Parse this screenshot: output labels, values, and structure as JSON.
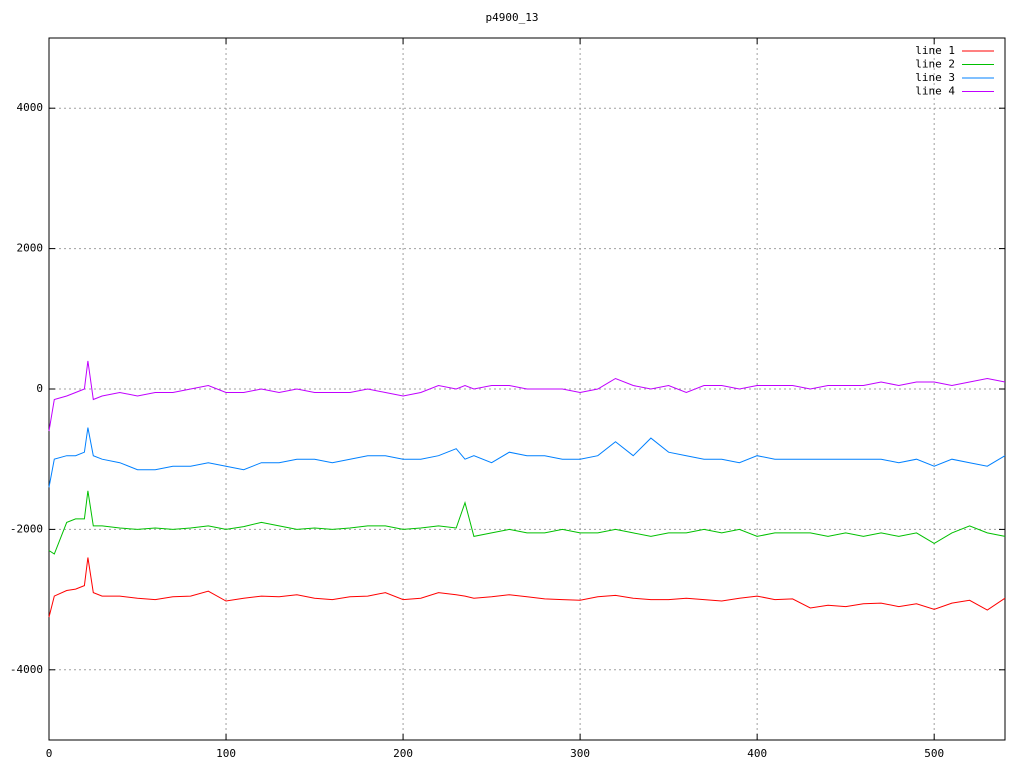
{
  "chart_data": {
    "type": "line",
    "title": "p4900_13",
    "x": [
      0,
      3,
      10,
      15,
      20,
      22,
      25,
      30,
      40,
      50,
      60,
      70,
      80,
      90,
      100,
      110,
      120,
      130,
      140,
      150,
      160,
      170,
      180,
      190,
      200,
      210,
      220,
      230,
      235,
      240,
      250,
      260,
      270,
      280,
      290,
      300,
      310,
      320,
      330,
      340,
      350,
      360,
      370,
      380,
      390,
      400,
      410,
      420,
      430,
      440,
      450,
      460,
      470,
      480,
      490,
      500,
      510,
      520,
      530,
      540
    ],
    "series": [
      {
        "name": "line 1",
        "color": "#ff0000",
        "values": [
          -3250,
          -2950,
          -2870,
          -2850,
          -2800,
          -2400,
          -2900,
          -2950,
          -2950,
          -2980,
          -3000,
          -2960,
          -2950,
          -2880,
          -3020,
          -2980,
          -2950,
          -2960,
          -2930,
          -2980,
          -3000,
          -2960,
          -2950,
          -2900,
          -3000,
          -2980,
          -2900,
          -2930,
          -2950,
          -2980,
          -2960,
          -2930,
          -2960,
          -2990,
          -3000,
          -3010,
          -2960,
          -2940,
          -2980,
          -3000,
          -3000,
          -2980,
          -3000,
          -3020,
          -2980,
          -2950,
          -3000,
          -2990,
          -3120,
          -3080,
          -3100,
          -3060,
          -3050,
          -3100,
          -3060,
          -3140,
          -3050,
          -3010,
          -3150,
          -2980
        ]
      },
      {
        "name": "line 2",
        "color": "#00c000",
        "values": [
          -2300,
          -2350,
          -1900,
          -1850,
          -1850,
          -1450,
          -1950,
          -1950,
          -1980,
          -2000,
          -1980,
          -2000,
          -1980,
          -1950,
          -2000,
          -1960,
          -1900,
          -1950,
          -2000,
          -1980,
          -2000,
          -1980,
          -1950,
          -1950,
          -2000,
          -1980,
          -1950,
          -1980,
          -1620,
          -2100,
          -2050,
          -2000,
          -2050,
          -2050,
          -2000,
          -2050,
          -2050,
          -2000,
          -2050,
          -2100,
          -2050,
          -2050,
          -2000,
          -2050,
          -2000,
          -2100,
          -2050,
          -2050,
          -2050,
          -2100,
          -2050,
          -2100,
          -2050,
          -2100,
          -2050,
          -2200,
          -2050,
          -1950,
          -2050,
          -2100
        ]
      },
      {
        "name": "line 3",
        "color": "#0080ff",
        "values": [
          -1400,
          -1000,
          -950,
          -950,
          -900,
          -550,
          -950,
          -1000,
          -1050,
          -1150,
          -1150,
          -1100,
          -1100,
          -1050,
          -1100,
          -1150,
          -1050,
          -1050,
          -1000,
          -1000,
          -1050,
          -1000,
          -950,
          -950,
          -1000,
          -1000,
          -950,
          -850,
          -1000,
          -950,
          -1050,
          -900,
          -950,
          -950,
          -1000,
          -1000,
          -950,
          -750,
          -950,
          -700,
          -900,
          -950,
          -1000,
          -1000,
          -1050,
          -950,
          -1000,
          -1000,
          -1000,
          -1000,
          -1000,
          -1000,
          -1000,
          -1050,
          -1000,
          -1100,
          -1000,
          -1050,
          -1100,
          -950
        ]
      },
      {
        "name": "line 4",
        "color": "#c000ff",
        "values": [
          -600,
          -150,
          -100,
          -50,
          0,
          400,
          -150,
          -100,
          -50,
          -100,
          -50,
          -50,
          0,
          50,
          -50,
          -50,
          0,
          -50,
          0,
          -50,
          -50,
          -50,
          0,
          -50,
          -100,
          -50,
          50,
          0,
          50,
          0,
          50,
          50,
          0,
          0,
          0,
          -50,
          0,
          150,
          50,
          0,
          50,
          -50,
          50,
          50,
          0,
          50,
          50,
          50,
          0,
          50,
          50,
          50,
          100,
          50,
          100,
          100,
          50,
          100,
          150,
          100
        ]
      }
    ],
    "xlim": [
      0,
      540
    ],
    "xticks": [
      0,
      100,
      200,
      300,
      400,
      500
    ],
    "ylim": [
      -5000,
      5000
    ],
    "yticks": [
      -4000,
      -2000,
      0,
      2000,
      4000
    ],
    "grid": true,
    "legend": "top-right"
  }
}
